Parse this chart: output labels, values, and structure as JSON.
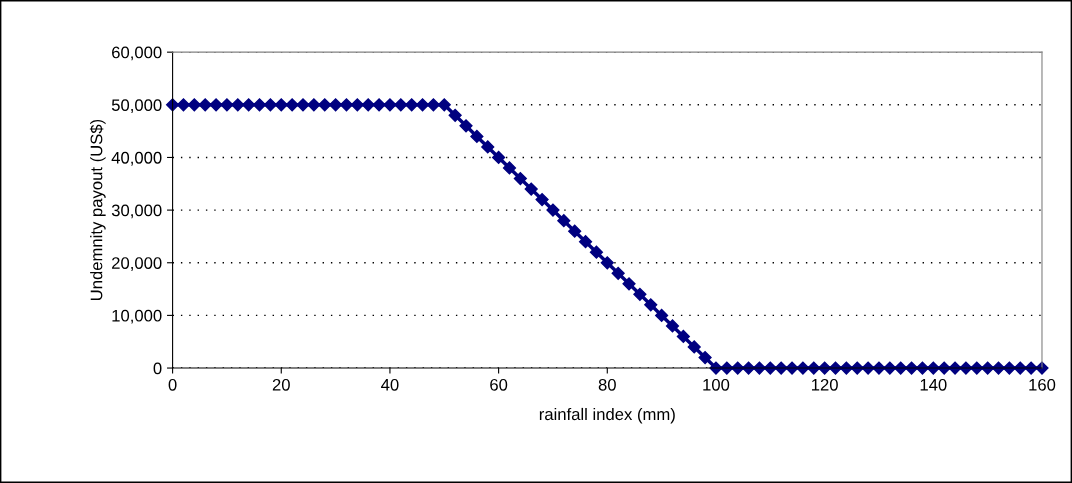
{
  "chart_data": {
    "type": "line",
    "xlabel": "rainfall index (mm)",
    "ylabel": "Undemnity payout (US$)",
    "x": [
      0,
      2,
      4,
      6,
      8,
      10,
      12,
      14,
      16,
      18,
      20,
      22,
      24,
      26,
      28,
      30,
      32,
      34,
      36,
      38,
      40,
      42,
      44,
      46,
      48,
      50,
      52,
      54,
      56,
      58,
      60,
      62,
      64,
      66,
      68,
      70,
      72,
      74,
      76,
      78,
      80,
      82,
      84,
      86,
      88,
      90,
      92,
      94,
      96,
      98,
      100,
      102,
      104,
      106,
      108,
      110,
      112,
      114,
      116,
      118,
      120,
      122,
      124,
      126,
      128,
      130,
      132,
      134,
      136,
      138,
      140,
      142,
      144,
      146,
      148,
      150,
      152,
      154,
      156,
      158,
      160
    ],
    "series": [
      {
        "color": "#000080",
        "values": [
          50000,
          50000,
          50000,
          50000,
          50000,
          50000,
          50000,
          50000,
          50000,
          50000,
          50000,
          50000,
          50000,
          50000,
          50000,
          50000,
          50000,
          50000,
          50000,
          50000,
          50000,
          50000,
          50000,
          50000,
          50000,
          50000,
          48000,
          46000,
          44000,
          42000,
          40000,
          38000,
          36000,
          34000,
          32000,
          30000,
          28000,
          26000,
          24000,
          22000,
          20000,
          18000,
          16000,
          14000,
          12000,
          10000,
          8000,
          6000,
          4000,
          2000,
          0,
          0,
          0,
          0,
          0,
          0,
          0,
          0,
          0,
          0,
          0,
          0,
          0,
          0,
          0,
          0,
          0,
          0,
          0,
          0,
          0,
          0,
          0,
          0,
          0,
          0,
          0,
          0,
          0,
          0,
          0
        ]
      }
    ],
    "xlim": [
      0,
      160
    ],
    "xticks": [
      0,
      20,
      40,
      60,
      80,
      100,
      120,
      140,
      160
    ],
    "ylim": [
      0,
      60000
    ],
    "yticks": [
      0,
      {
        "value": 10000,
        "label": "10,000"
      },
      {
        "value": 20000,
        "label": "20,000"
      },
      {
        "value": 30000,
        "label": "30,000"
      },
      {
        "value": 40000,
        "label": "40,000"
      },
      {
        "value": 50000,
        "label": "50,000"
      },
      {
        "value": 60000,
        "label": "60,000"
      }
    ],
    "grid": "y",
    "marker": "diamond",
    "line_style": "solid"
  }
}
